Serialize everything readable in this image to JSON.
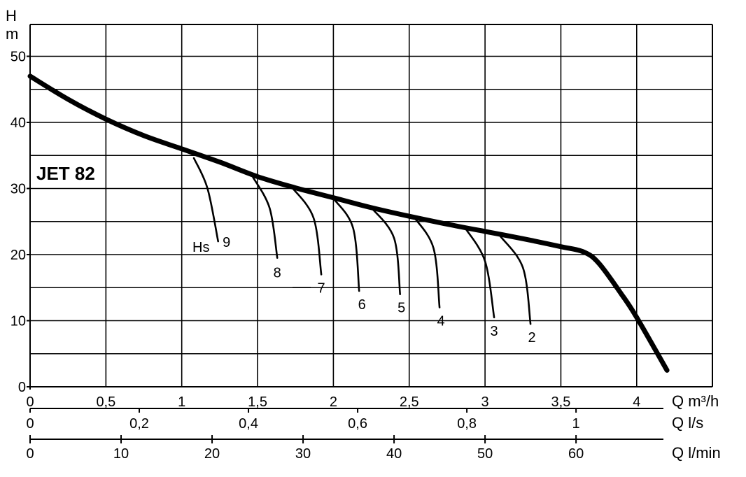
{
  "chart_data": {
    "type": "line",
    "title": "JET 82",
    "ylabel_top": "H",
    "ylabel_unit": "m",
    "ylim": [
      0,
      55
    ],
    "yticks": [
      0,
      10,
      20,
      30,
      40,
      50
    ],
    "xlim_m3h": [
      0,
      4.5
    ],
    "x_axes": [
      {
        "label": "Q m³/h",
        "ticks": [
          0,
          0.5,
          1,
          1.5,
          2,
          2.5,
          3,
          3.5,
          4
        ],
        "tick_labels": [
          "0",
          "0,5",
          "1",
          "1,5",
          "2",
          "2,5",
          "3",
          "3,5",
          "4"
        ]
      },
      {
        "label": "Q l/s",
        "ticks": [
          0,
          0.2,
          0.4,
          0.6,
          0.8,
          1
        ],
        "tick_labels": [
          "0",
          "0,2",
          "0,4",
          "0,6",
          "0,8",
          "1"
        ]
      },
      {
        "label": "Q l/min",
        "ticks": [
          0,
          10,
          20,
          30,
          40,
          50,
          60
        ],
        "tick_labels": [
          "0",
          "10",
          "20",
          "30",
          "40",
          "50",
          "60"
        ]
      }
    ],
    "grid": true,
    "series": [
      {
        "name": "JET 82",
        "x": [
          0,
          0.25,
          0.5,
          0.75,
          1.0,
          1.25,
          1.5,
          1.75,
          2.0,
          2.25,
          2.5,
          2.75,
          3.0,
          3.25,
          3.5,
          3.65,
          3.75,
          3.9,
          4.0,
          4.2
        ],
        "y": [
          47,
          43.5,
          40.5,
          38,
          36,
          34,
          31.8,
          30.1,
          28.6,
          27.1,
          25.8,
          24.6,
          23.5,
          22.4,
          21.2,
          20.4,
          18.7,
          14,
          10.5,
          2.5
        ]
      }
    ],
    "hs_label": "Hs",
    "hs_curves": [
      {
        "label": "9",
        "x": [
          1.08,
          1.17,
          1.24
        ],
        "y": [
          34.6,
          30,
          22
        ]
      },
      {
        "label": "8",
        "x": [
          1.47,
          1.58,
          1.63
        ],
        "y": [
          31.7,
          27,
          19.5
        ]
      },
      {
        "label": "7",
        "x": [
          1.73,
          1.87,
          1.92
        ],
        "y": [
          30.1,
          25.5,
          17
        ]
      },
      {
        "label": "6",
        "x": [
          2.0,
          2.13,
          2.17
        ],
        "y": [
          28.5,
          24,
          14.5
        ]
      },
      {
        "label": "5",
        "x": [
          2.25,
          2.4,
          2.44
        ],
        "y": [
          27.1,
          22.5,
          14
        ]
      },
      {
        "label": "4",
        "x": [
          2.53,
          2.66,
          2.7
        ],
        "y": [
          25.7,
          21,
          12
        ]
      },
      {
        "label": "3",
        "x": [
          2.87,
          3.0,
          3.06
        ],
        "y": [
          24.0,
          19,
          10.5
        ]
      },
      {
        "label": "2",
        "x": [
          3.1,
          3.25,
          3.3
        ],
        "y": [
          22.8,
          18,
          9.5
        ]
      }
    ]
  }
}
